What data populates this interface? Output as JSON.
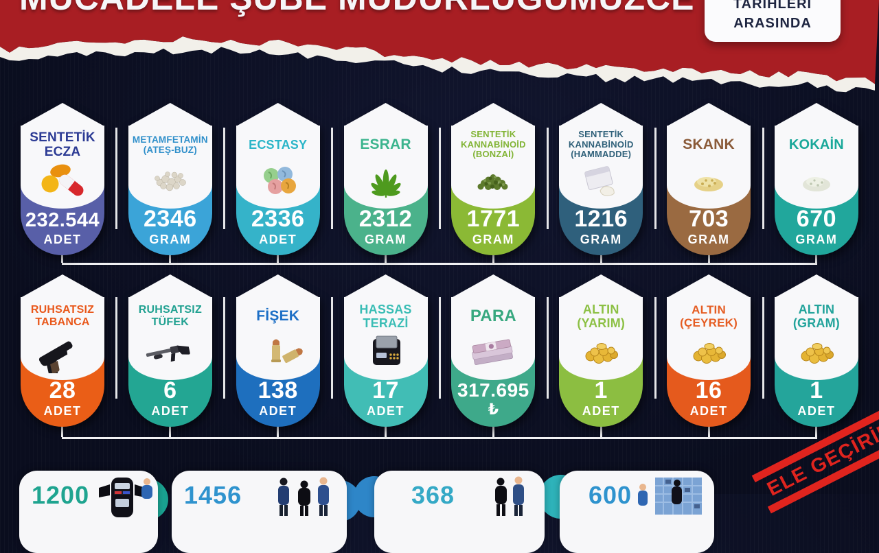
{
  "header": {
    "title": "MÜCADELE ŞUBE MÜDÜRLÜĞÜMÜZCE",
    "date_box": {
      "line1": "TARİHLERİ",
      "line2": "ARASINDA"
    }
  },
  "row1": {
    "items": [
      {
        "title": "SENTETİK\nECZA",
        "value": "232.544",
        "unit": "ADET",
        "title_color": "#2b3a94",
        "capsule_color": "#585fa8",
        "icon": "pills-icon"
      },
      {
        "title": "METAMFETAMİN\n(ATEŞ-BUZ)",
        "value": "2346",
        "unit": "GRAM",
        "title_color": "#2f8fca",
        "capsule_color": "#3ba4d8",
        "icon": "meth-crystals-icon"
      },
      {
        "title": "ECSTASY",
        "value": "2336",
        "unit": "ADET",
        "title_color": "#2ab5c8",
        "capsule_color": "#35b3c9",
        "icon": "ecstasy-tablets-icon"
      },
      {
        "title": "ESRAR",
        "value": "2312",
        "unit": "GRAM",
        "title_color": "#3cb48e",
        "capsule_color": "#4bb28b",
        "icon": "cannabis-leaf-icon"
      },
      {
        "title": "SENTETİK\nKANNABİNOİD\n(BONZAİ)",
        "value": "1771",
        "unit": "GRAM",
        "title_color": "#82b436",
        "capsule_color": "#8bb935",
        "icon": "herb-pile-icon"
      },
      {
        "title": "SENTETİK\nKANNABİNOİD\n(HAMMADDE)",
        "value": "1216",
        "unit": "GRAM",
        "title_color": "#30617a",
        "capsule_color": "#2f607c",
        "icon": "powder-bag-icon"
      },
      {
        "title": "SKANK",
        "value": "703",
        "unit": "GRAM",
        "title_color": "#8a5a38",
        "capsule_color": "#9a6a41",
        "icon": "skank-pile-icon"
      },
      {
        "title": "KOKAİN",
        "value": "670",
        "unit": "GRAM",
        "title_color": "#1aa89a",
        "capsule_color": "#21a79c",
        "icon": "cocaine-pile-icon"
      }
    ]
  },
  "row2": {
    "items": [
      {
        "title": "RUHSATSIZ\nTABANCA",
        "value": "28",
        "unit": "ADET",
        "title_color": "#e9581b",
        "capsule_color": "#ea5e17",
        "icon": "pistol-icon"
      },
      {
        "title": "RUHSATSIZ\nTÜFEK",
        "value": "6",
        "unit": "ADET",
        "title_color": "#21a191",
        "capsule_color": "#23a693",
        "icon": "shotgun-icon"
      },
      {
        "title": "FİŞEK",
        "value": "138",
        "unit": "ADET",
        "title_color": "#1d6fc6",
        "capsule_color": "#1e6fbe",
        "icon": "bullets-icon"
      },
      {
        "title": "HASSAS\nTERAZİ",
        "value": "17",
        "unit": "ADET",
        "title_color": "#3abdb5",
        "capsule_color": "#41bdb5",
        "icon": "precision-scale-icon"
      },
      {
        "title": "PARA",
        "value": "317.695",
        "unit": "₺",
        "title_color": "#37a87f",
        "capsule_color": "#3ea98a",
        "icon": "banknotes-icon"
      },
      {
        "title": "ALTIN\n(YARIM)",
        "value": "1",
        "unit": "ADET",
        "title_color": "#8cc044",
        "capsule_color": "#8cbe41",
        "icon": "gold-coins-icon"
      },
      {
        "title": "ALTIN\n(ÇEYREK)",
        "value": "16",
        "unit": "ADET",
        "title_color": "#e55c22",
        "capsule_color": "#e55a1d",
        "icon": "gold-coins-icon"
      },
      {
        "title": "ALTIN\n(GRAM)",
        "value": "1",
        "unit": "ADET",
        "title_color": "#22a39b",
        "capsule_color": "#24a59b",
        "icon": "gold-coins-icon"
      }
    ]
  },
  "bottom": {
    "cards": [
      {
        "value": "1200",
        "color": "#1fa490",
        "accent": "#1aa392"
      },
      {
        "value": "1456",
        "color": "#2f93ce",
        "accent": "#2e86c8"
      },
      {
        "value": "368",
        "color": "#35a9c6",
        "accent": "#2e86c8"
      },
      {
        "value": "600",
        "color": "#2f93ce",
        "accent": "#2eb3ba"
      }
    ]
  },
  "stamp": {
    "label": "ELE GEÇİRİLDİ",
    "color": "#e0241e"
  },
  "colors": {
    "background": "#0b0e20",
    "banner_red": "#a81e23",
    "torn_paper": "#f2f0ea",
    "badge_white": "#f8f8fa",
    "connector": "#f2f2f4"
  },
  "chart_data": {
    "type": "table",
    "title": "MÜCADELE ŞUBE MÜDÜRLÜĞÜMÜZCE",
    "groups": [
      {
        "name": "narcotics",
        "items": [
          {
            "label": "SENTETİK ECZA",
            "value": 232544,
            "unit": "ADET"
          },
          {
            "label": "METAMFETAMİN (ATEŞ-BUZ)",
            "value": 2346,
            "unit": "GRAM"
          },
          {
            "label": "ECSTASY",
            "value": 2336,
            "unit": "ADET"
          },
          {
            "label": "ESRAR",
            "value": 2312,
            "unit": "GRAM"
          },
          {
            "label": "SENTETİK KANNABİNOİD (BONZAİ)",
            "value": 1771,
            "unit": "GRAM"
          },
          {
            "label": "SENTETİK KANNABİNOİD (HAMMADDE)",
            "value": 1216,
            "unit": "GRAM"
          },
          {
            "label": "SKANK",
            "value": 703,
            "unit": "GRAM"
          },
          {
            "label": "KOKAİN",
            "value": 670,
            "unit": "GRAM"
          }
        ]
      },
      {
        "name": "weapons-valuables",
        "items": [
          {
            "label": "RUHSATSIZ TABANCA",
            "value": 28,
            "unit": "ADET"
          },
          {
            "label": "RUHSATSIZ TÜFEK",
            "value": 6,
            "unit": "ADET"
          },
          {
            "label": "FİŞEK",
            "value": 138,
            "unit": "ADET"
          },
          {
            "label": "HASSAS TERAZİ",
            "value": 17,
            "unit": "ADET"
          },
          {
            "label": "PARA",
            "value": 317695,
            "unit": "₺"
          },
          {
            "label": "ALTIN (YARIM)",
            "value": 1,
            "unit": "ADET"
          },
          {
            "label": "ALTIN (ÇEYREK)",
            "value": 16,
            "unit": "ADET"
          },
          {
            "label": "ALTIN (GRAM)",
            "value": 1,
            "unit": "ADET"
          }
        ]
      },
      {
        "name": "bottom-summary",
        "items": [
          {
            "value": 1200
          },
          {
            "value": 1456
          },
          {
            "value": 368
          },
          {
            "value": 600
          }
        ]
      }
    ]
  }
}
